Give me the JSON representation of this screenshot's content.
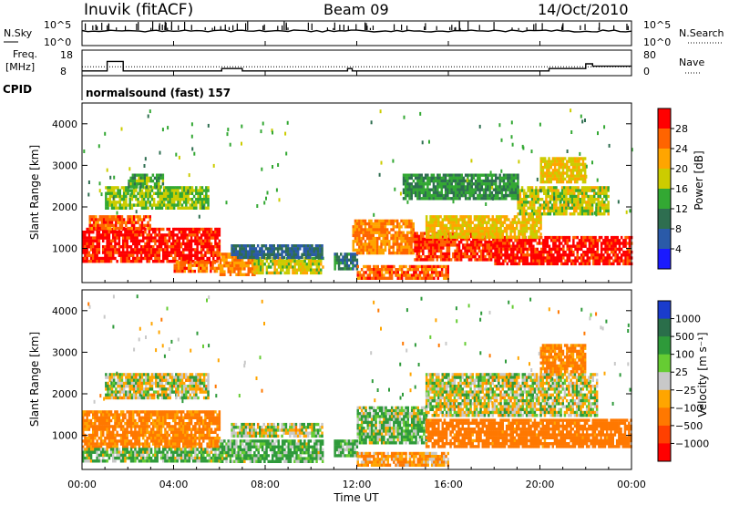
{
  "header": {
    "station": "Inuvik (fitACF)",
    "beam": "Beam 09",
    "date": "14/Oct/2010"
  },
  "top_panels": {
    "nsky_label": "N.Sky",
    "nsky_ticks": [
      "10^5",
      "10^0"
    ],
    "nsearch_label": "N.Search",
    "nsearch_ticks": [
      "10^5",
      "10^0"
    ],
    "freq_label_1": "Freq.",
    "freq_label_2": "[MHz]",
    "freq_ticks": [
      "18",
      "8"
    ],
    "nave_label": "Nave",
    "nave_ticks": [
      "80",
      "0"
    ],
    "cpid_label": "CPID",
    "cpid_text": "normalsound (fast) 157"
  },
  "axes": {
    "ylabel": "Slant Range [km]",
    "xlabel": "Time UT",
    "yticks": [
      "1000",
      "2000",
      "3000",
      "4000"
    ],
    "xticks": [
      "00:00",
      "04:00",
      "08:00",
      "12:00",
      "16:00",
      "20:00",
      "00:00"
    ]
  },
  "colorbars": {
    "power": {
      "label": "Power [dB]",
      "ticks": [
        "28",
        "24",
        "20",
        "16",
        "12",
        "8",
        "4"
      ],
      "colors": [
        "#ff0000",
        "#ff6400",
        "#ffa500",
        "#cccc00",
        "#33a833",
        "#2e6e50",
        "#2a5aa8",
        "#1a1aff"
      ]
    },
    "velocity": {
      "label": "Velocity [m s⁻¹]",
      "ticks": [
        "1000",
        "500",
        "100",
        "25",
        "−25",
        "−100",
        "−500",
        "−1000"
      ],
      "colors": [
        "#1a3ccc",
        "#2a6e4a",
        "#2e9a3a",
        "#66cc33",
        "#c8c8c8",
        "#ffa500",
        "#ff7800",
        "#ff4000",
        "#ff0000"
      ]
    }
  },
  "chart_data": [
    {
      "type": "heatmap",
      "title": "Power",
      "xlabel": "Time UT",
      "ylabel": "Slant Range [km]",
      "xlim_hours": [
        0,
        24
      ],
      "ylim_km": [
        180,
        4500
      ],
      "colorbar_range_dB": [
        0,
        30
      ],
      "regions": [
        {
          "t": [
            0.0,
            6.0
          ],
          "range_km": [
            700,
            1500
          ],
          "power_dB": 28
        },
        {
          "t": [
            0.3,
            3.0
          ],
          "range_km": [
            1500,
            1800
          ],
          "power_dB": 24
        },
        {
          "t": [
            1.0,
            5.5
          ],
          "range_km": [
            2000,
            2500
          ],
          "power_dB": 14
        },
        {
          "t": [
            2.0,
            3.5
          ],
          "range_km": [
            2500,
            2800
          ],
          "power_dB": 12
        },
        {
          "t": [
            4.0,
            6.0
          ],
          "range_km": [
            450,
            700
          ],
          "power_dB": 24
        },
        {
          "t": [
            6.0,
            7.5
          ],
          "range_km": [
            400,
            900
          ],
          "power_dB": 22
        },
        {
          "t": [
            7.5,
            10.5
          ],
          "range_km": [
            400,
            800
          ],
          "power_dB": 16
        },
        {
          "t": [
            6.5,
            10.5
          ],
          "range_km": [
            800,
            1100
          ],
          "power_dB": 6
        },
        {
          "t": [
            11.0,
            12.0
          ],
          "range_km": [
            500,
            900
          ],
          "power_dB": 8
        },
        {
          "t": [
            11.8,
            14.5
          ],
          "range_km": [
            900,
            1700
          ],
          "power_dB": 22
        },
        {
          "t": [
            12.0,
            16.0
          ],
          "range_km": [
            300,
            600
          ],
          "power_dB": 24
        },
        {
          "t": [
            14.5,
            18.0
          ],
          "range_km": [
            700,
            1400
          ],
          "power_dB": 26
        },
        {
          "t": [
            18.0,
            24.0
          ],
          "range_km": [
            650,
            1300
          ],
          "power_dB": 28
        },
        {
          "t": [
            15.0,
            20.0
          ],
          "range_km": [
            1300,
            1800
          ],
          "power_dB": 18
        },
        {
          "t": [
            19.0,
            23.0
          ],
          "range_km": [
            1800,
            2500
          ],
          "power_dB": 16
        },
        {
          "t": [
            20.0,
            22.0
          ],
          "range_km": [
            2600,
            3200
          ],
          "power_dB": 18
        },
        {
          "t": [
            14.0,
            19.0
          ],
          "range_km": [
            2200,
            2800
          ],
          "power_dB": 10
        }
      ]
    },
    {
      "type": "heatmap",
      "title": "Velocity",
      "xlabel": "Time UT",
      "ylabel": "Slant Range [km]",
      "xlim_hours": [
        0,
        24
      ],
      "ylim_km": [
        180,
        4500
      ],
      "colorbar_range_ms": [
        -1000,
        1000
      ],
      "regions": [
        {
          "t": [
            0.0,
            6.0
          ],
          "range_km": [
            700,
            1600
          ],
          "velocity_ms": -150
        },
        {
          "t": [
            0.0,
            6.0
          ],
          "range_km": [
            400,
            700
          ],
          "velocity_ms": 60
        },
        {
          "t": [
            1.0,
            5.5
          ],
          "range_km": [
            1900,
            2500
          ],
          "velocity_ms": 0
        },
        {
          "t": [
            6.0,
            10.5
          ],
          "range_km": [
            400,
            900
          ],
          "velocity_ms": 80
        },
        {
          "t": [
            6.5,
            10.5
          ],
          "range_km": [
            1000,
            1300
          ],
          "velocity_ms": 0
        },
        {
          "t": [
            11.0,
            12.0
          ],
          "range_km": [
            500,
            900
          ],
          "velocity_ms": 100
        },
        {
          "t": [
            12.0,
            15.0
          ],
          "range_km": [
            800,
            1700
          ],
          "velocity_ms": 60
        },
        {
          "t": [
            12.0,
            16.0
          ],
          "range_km": [
            300,
            600
          ],
          "velocity_ms": -100
        },
        {
          "t": [
            15.0,
            24.0
          ],
          "range_km": [
            700,
            1400
          ],
          "velocity_ms": -200
        },
        {
          "t": [
            15.0,
            22.5
          ],
          "range_km": [
            1500,
            2500
          ],
          "velocity_ms": 0
        },
        {
          "t": [
            20.0,
            22.0
          ],
          "range_km": [
            2500,
            3200
          ],
          "velocity_ms": -150
        }
      ]
    }
  ]
}
